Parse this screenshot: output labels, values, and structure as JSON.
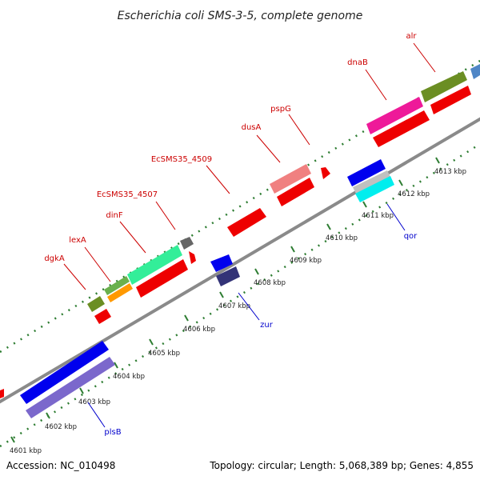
{
  "title": "Escherichia coli SMS-3-5, complete genome",
  "footer": {
    "accession": "Accession: NC_010498",
    "summary": "Topology: circular; Length: 5,068,389 bp; Genes: 4,855"
  },
  "colors": {
    "backbone": "#888888",
    "tick": "#2e7d32",
    "top_label": "#cc0000",
    "bottom_label": "#0000cc"
  },
  "ticks": [
    "4601 kbp",
    "4602 kbp",
    "4603 kbp",
    "4604 kbp",
    "4605 kbp",
    "4606 kbp",
    "4607 kbp",
    "4608 kbp",
    "4609 kbp",
    "4610 kbp",
    "4611 kbp",
    "4612 kbp",
    "4613 kbp"
  ],
  "genes_top": [
    "dgkA",
    "lexA",
    "dinF",
    "EcSMS35_4507",
    "EcSMS35_4509",
    "dusA",
    "pspG",
    "dnaB",
    "alr"
  ],
  "genes_bottom": [
    "plsB",
    "zur",
    "qor"
  ]
}
